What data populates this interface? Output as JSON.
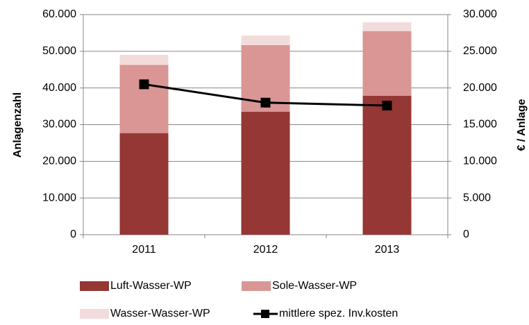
{
  "chart_data": {
    "type": "bar",
    "stacked": true,
    "categories": [
      "2011",
      "2012",
      "2013"
    ],
    "ylabel": "Anlagenzahl",
    "y2label": "€ / Anlage",
    "ylim": [
      0,
      60000
    ],
    "yticks": [
      0,
      {
        "value": 10000,
        "label": "10.000"
      },
      {
        "value": 20000,
        "label": "20.000"
      },
      {
        "value": 30000,
        "label": "30.000"
      },
      {
        "value": 40000,
        "label": "40.000"
      },
      {
        "value": 50000,
        "label": "50.000"
      },
      {
        "value": 60000,
        "label": "60.000"
      }
    ],
    "y2lim": [
      0,
      30000
    ],
    "y2ticks": [
      0,
      {
        "value": 5000,
        "label": "5.000"
      },
      {
        "value": 10000,
        "label": "10.000"
      },
      {
        "value": 15000,
        "label": "15.000"
      },
      {
        "value": 20000,
        "label": "20.000"
      },
      {
        "value": 25000,
        "label": "25.000"
      },
      {
        "value": 30000,
        "label": "30.000"
      }
    ],
    "grid": true,
    "series": [
      {
        "name": "Luft-Wasser-WP",
        "color": "#953735",
        "values": [
          27700,
          33500,
          37900
        ]
      },
      {
        "name": "Sole-Wasser-WP",
        "color": "#d99694",
        "values": [
          18600,
          18200,
          17600
        ]
      },
      {
        "name": "Wasser-Wasser-WP",
        "color": "#f2dcdb",
        "values": [
          2700,
          2600,
          2400
        ]
      },
      {
        "name": "mittlere spez. Inv.kosten",
        "color": "#000000",
        "type": "line",
        "axis": "y2",
        "values": [
          20500,
          18000,
          17600
        ]
      }
    ]
  }
}
